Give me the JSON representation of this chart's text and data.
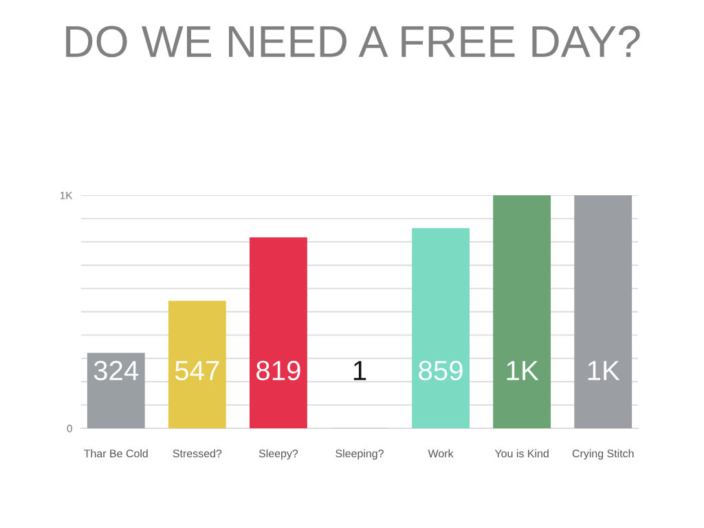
{
  "chart_data": {
    "type": "bar",
    "title": "DO WE NEED A FREE DAY?",
    "categories": [
      "Thar Be Cold",
      "Stressed?",
      "Sleepy?",
      "Sleeping?",
      "Work",
      "You is Kind",
      "Crying Stitch"
    ],
    "values": [
      324,
      547,
      819,
      1,
      859,
      1000,
      1000
    ],
    "colors": [
      "#9a9fa3",
      "#e4c84c",
      "#e6314d",
      "#8fa3a6",
      "#7bdac2",
      "#6ba374",
      "#9b9fa3"
    ],
    "value_labels": [
      "324",
      "547",
      "819",
      "1",
      "859",
      "1K",
      "1K"
    ],
    "ylim": [
      0,
      1000
    ],
    "yticks": [
      0,
      {
        "value": 100,
        "label": null
      },
      {
        "value": 200,
        "label": null
      },
      {
        "value": 300,
        "label": null
      },
      {
        "value": 400,
        "label": null
      },
      {
        "value": 500,
        "label": null
      },
      {
        "value": 600,
        "label": null
      },
      {
        "value": 700,
        "label": null
      },
      {
        "value": 800,
        "label": null
      },
      {
        "value": 900,
        "label": null
      },
      {
        "value": 1000,
        "label": "1K"
      }
    ],
    "grid": "y"
  }
}
